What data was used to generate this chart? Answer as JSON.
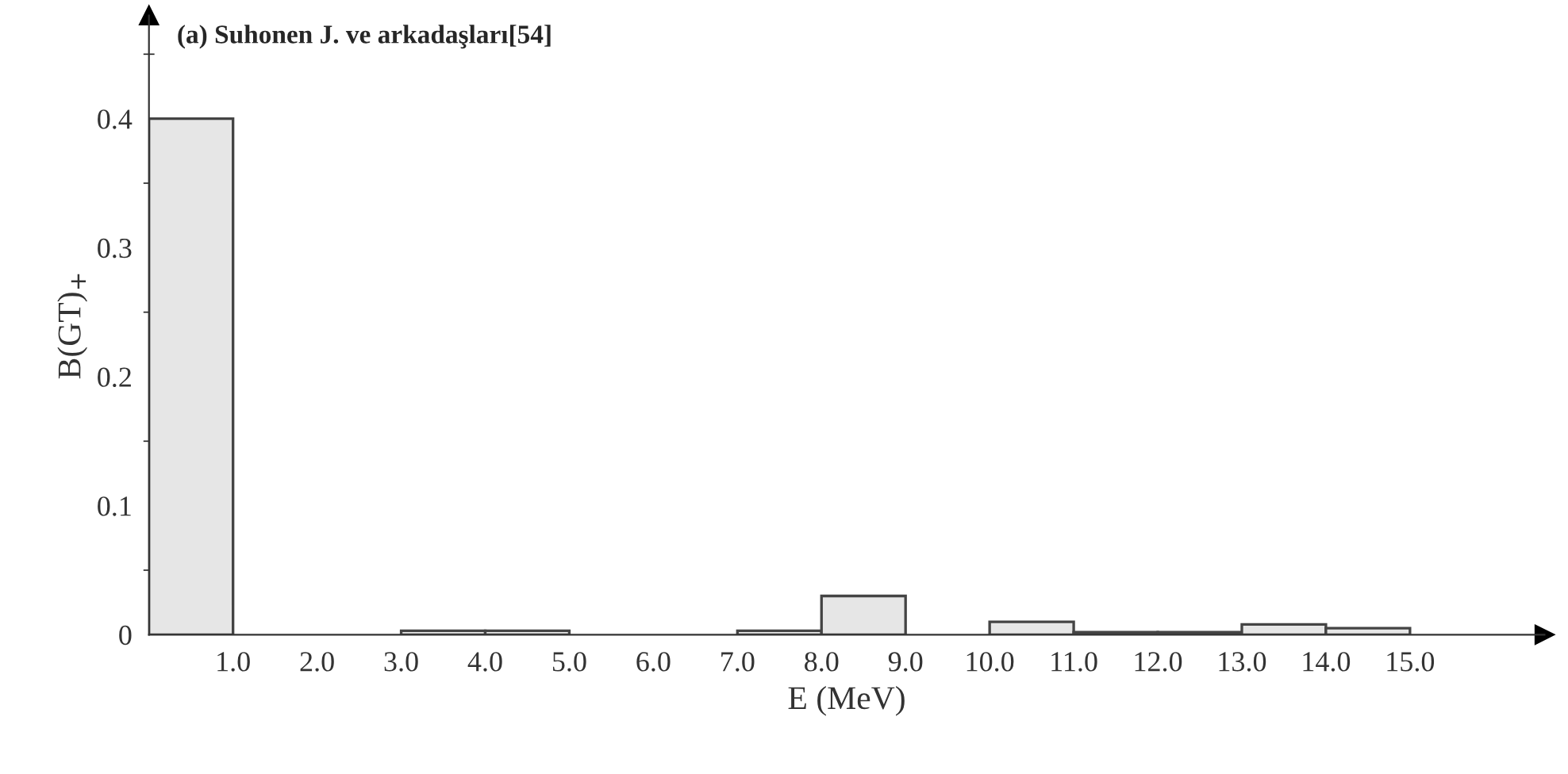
{
  "chart_data": {
    "type": "histogram",
    "title": "(a) Suhonen J. ve arkadaşları[54]",
    "xlabel": "E (MeV)",
    "ylabel": "B(GT)$_{+}$",
    "bins": [
      0,
      1,
      2,
      3,
      4,
      5,
      6,
      7,
      8,
      9,
      10,
      11,
      12,
      13,
      14,
      15
    ],
    "values": [
      0.4,
      0,
      0,
      0.003,
      0.003,
      0,
      0,
      0.003,
      0.03,
      0,
      0.01,
      0.002,
      0.002,
      0.008,
      0.005
    ],
    "color": "#e6e6e6",
    "xlim": [
      0,
      16.6
    ],
    "ylim": [
      0,
      0.48
    ],
    "xticks": [
      {
        "value": 1,
        "label": "1.0"
      },
      {
        "value": 2,
        "label": "2.0"
      },
      {
        "value": 3,
        "label": "3.0"
      },
      {
        "value": 4,
        "label": "4.0"
      },
      {
        "value": 5,
        "label": "5.0"
      },
      {
        "value": 6,
        "label": "6.0"
      },
      {
        "value": 7,
        "label": "7.0"
      },
      {
        "value": 8,
        "label": "8.0"
      },
      {
        "value": 9,
        "label": "9.0"
      },
      {
        "value": 10,
        "label": "10.0"
      },
      {
        "value": 11,
        "label": "11.0"
      },
      {
        "value": 12,
        "label": "12.0"
      },
      {
        "value": 13,
        "label": "13.0"
      },
      {
        "value": 14,
        "label": "14.0"
      },
      {
        "value": 15,
        "label": "15.0"
      }
    ],
    "yticks": [
      0,
      0.1,
      0.2,
      0.3,
      0.4
    ],
    "grid": false,
    "legend": false
  }
}
